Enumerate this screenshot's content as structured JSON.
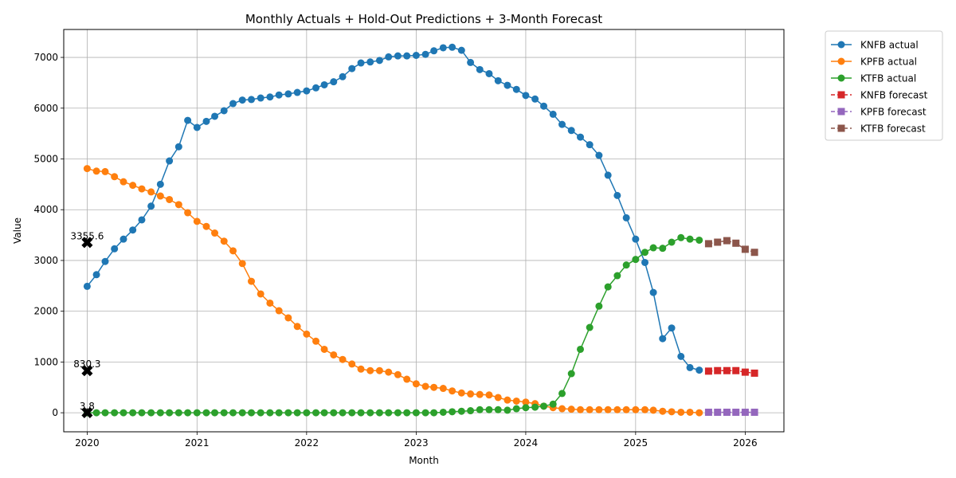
{
  "chart_data": {
    "type": "line",
    "title": "Monthly Actuals + Hold-Out Predictions + 3-Month Forecast",
    "xlabel": "Month",
    "ylabel": "Value",
    "xlim": [
      "2019-10-15",
      "2026-05-10"
    ],
    "ylim": [
      -375,
      7550
    ],
    "x_ticks": [
      "2020",
      "2021",
      "2022",
      "2023",
      "2024",
      "2025",
      "2026"
    ],
    "y_ticks": [
      0,
      1000,
      2000,
      3000,
      4000,
      5000,
      6000,
      7000
    ],
    "grid": true,
    "legend_position": "outside-top-right",
    "actual_months": [
      "2020-01",
      "2020-02",
      "2020-03",
      "2020-04",
      "2020-05",
      "2020-06",
      "2020-07",
      "2020-08",
      "2020-09",
      "2020-10",
      "2020-11",
      "2020-12",
      "2021-01",
      "2021-02",
      "2021-03",
      "2021-04",
      "2021-05",
      "2021-06",
      "2021-07",
      "2021-08",
      "2021-09",
      "2021-10",
      "2021-11",
      "2021-12",
      "2022-01",
      "2022-02",
      "2022-03",
      "2022-04",
      "2022-05",
      "2022-06",
      "2022-07",
      "2022-08",
      "2022-09",
      "2022-10",
      "2022-11",
      "2022-12",
      "2023-01",
      "2023-02",
      "2023-03",
      "2023-04",
      "2023-05",
      "2023-06",
      "2023-07",
      "2023-08",
      "2023-09",
      "2023-10",
      "2023-11",
      "2023-12",
      "2024-01",
      "2024-02",
      "2024-03",
      "2024-04",
      "2024-05",
      "2024-06",
      "2024-07",
      "2024-08",
      "2024-09",
      "2024-10",
      "2024-11",
      "2024-12",
      "2025-01",
      "2025-02",
      "2025-03",
      "2025-04",
      "2025-05",
      "2025-06",
      "2025-07",
      "2025-08"
    ],
    "forecast_months": [
      "2025-09",
      "2025-10",
      "2025-11",
      "2025-12",
      "2026-01",
      "2026-02"
    ],
    "series": [
      {
        "name": "KNFB actual",
        "kind": "actual",
        "color": "#1f77b4",
        "values": [
          2490,
          2720,
          2980,
          3230,
          3420,
          3600,
          3800,
          4070,
          4500,
          4960,
          5240,
          5760,
          5620,
          5740,
          5840,
          5950,
          6090,
          6160,
          6170,
          6200,
          6220,
          6260,
          6280,
          6310,
          6340,
          6400,
          6460,
          6520,
          6620,
          6780,
          6890,
          6910,
          6940,
          7010,
          7030,
          7030,
          7040,
          7060,
          7130,
          7190,
          7200,
          7140,
          6900,
          6760,
          6680,
          6540,
          6450,
          6370,
          6250,
          6180,
          6040,
          5880,
          5680,
          5560,
          5430,
          5280,
          5070,
          4680,
          4280,
          3840,
          3420,
          2960,
          2370,
          1460,
          1670,
          1110,
          890,
          840
        ]
      },
      {
        "name": "KPFB actual",
        "kind": "actual",
        "color": "#ff7f0e",
        "values": [
          4810,
          4760,
          4750,
          4650,
          4550,
          4480,
          4410,
          4350,
          4270,
          4200,
          4100,
          3940,
          3770,
          3670,
          3540,
          3380,
          3190,
          2940,
          2590,
          2340,
          2160,
          2010,
          1870,
          1700,
          1550,
          1410,
          1250,
          1140,
          1050,
          960,
          860,
          830,
          830,
          800,
          750,
          660,
          570,
          520,
          500,
          480,
          430,
          390,
          370,
          360,
          350,
          300,
          250,
          230,
          210,
          180,
          130,
          100,
          80,
          70,
          60,
          60,
          60,
          60,
          60,
          60,
          60,
          60,
          50,
          30,
          20,
          10,
          10,
          0
        ]
      },
      {
        "name": "KTFB actual",
        "kind": "actual",
        "color": "#2ca02c",
        "values": [
          0,
          0,
          0,
          0,
          0,
          0,
          0,
          0,
          0,
          0,
          0,
          0,
          0,
          0,
          0,
          0,
          0,
          0,
          0,
          0,
          0,
          0,
          0,
          0,
          0,
          0,
          0,
          0,
          0,
          0,
          0,
          0,
          0,
          0,
          0,
          0,
          0,
          0,
          0,
          10,
          20,
          30,
          40,
          60,
          60,
          60,
          50,
          80,
          100,
          110,
          130,
          170,
          380,
          770,
          1250,
          1680,
          2100,
          2480,
          2700,
          2910,
          3020,
          3160,
          3250,
          3240,
          3360,
          3450,
          3420,
          3400
        ]
      },
      {
        "name": "KNFB forecast",
        "kind": "forecast",
        "color": "#d62728",
        "values": [
          820,
          830,
          830,
          830,
          800,
          780
        ]
      },
      {
        "name": "KPFB forecast",
        "kind": "forecast",
        "color": "#9467bd",
        "values": [
          10,
          10,
          10,
          10,
          10,
          10
        ]
      },
      {
        "name": "KTFB forecast",
        "kind": "forecast",
        "color": "#8c564b",
        "values": [
          3330,
          3360,
          3390,
          3340,
          3220,
          3160
        ]
      }
    ],
    "holdout_points": [
      {
        "x": "2020-01",
        "y": 3355.6,
        "label": "3355.6"
      },
      {
        "x": "2020-01",
        "y": 830.3,
        "label": "830.3"
      },
      {
        "x": "2020-01",
        "y": 3.8,
        "label": "3.8"
      }
    ]
  }
}
